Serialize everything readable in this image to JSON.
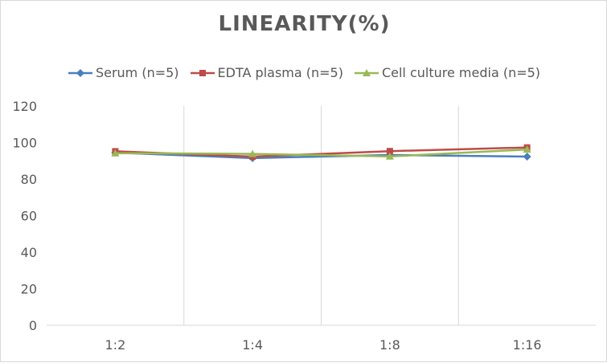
{
  "chart_data": {
    "type": "line",
    "title": "LINEARITY(%)",
    "categories": [
      "1:2",
      "1:4",
      "1:8",
      "1:16"
    ],
    "ylim": [
      0,
      120
    ],
    "yticks": [
      0,
      20,
      40,
      60,
      80,
      100,
      120
    ],
    "grid": "vertical",
    "legend_position": "top",
    "series": [
      {
        "name": "Serum (n=5)",
        "color": "#4a7ebb",
        "marker": "diamond",
        "values": [
          94.5,
          91.5,
          93.2,
          92.3
        ]
      },
      {
        "name": "EDTA plasma (n=5)",
        "color": "#be4b48",
        "marker": "square",
        "values": [
          95.2,
          92.3,
          95.3,
          97.3
        ]
      },
      {
        "name": "Cell culture media (n=5)",
        "color": "#98b954",
        "marker": "triangle",
        "values": [
          94.2,
          93.8,
          92.4,
          96.2
        ]
      }
    ]
  }
}
